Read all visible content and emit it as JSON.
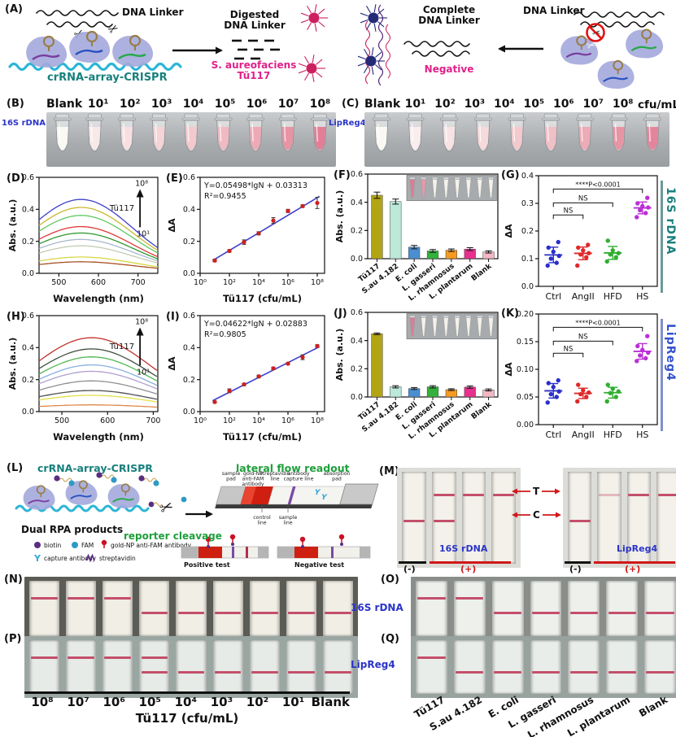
{
  "colors": {
    "magenta": "#e0218a",
    "teal": "#17807d",
    "blue_label": "#2a34c8",
    "green": "#1fa03c",
    "row1": "#187f7d",
    "row2": "#3252cc",
    "strip_line": "#c44f6b"
  },
  "panelA": {
    "tag": "(A)",
    "dna_linker_left": "DNA Linker",
    "crispr": "crRNA-array-CRISPR",
    "digested": "Digested\nDNA Linker",
    "positive": "S. aureofaciens\nTü117",
    "complete": "Complete\nDNA Linker",
    "negative": "Negative",
    "dna_linker_right": "DNA Linker"
  },
  "panelB": {
    "tag": "(B)",
    "side": "16S rDNA",
    "labels": [
      "Blank",
      "10¹",
      "10²",
      "10³",
      "10⁴",
      "10⁵",
      "10⁶",
      "10⁷",
      "10⁸"
    ],
    "tube_colors": [
      "#faf8f2",
      "#f8e9e9",
      "#f7dfe1",
      "#f4d4d7",
      "#f2c9cd",
      "#efbac3",
      "#edaab6",
      "#e794a5",
      "#e27f97"
    ]
  },
  "panelC": {
    "tag": "(C)",
    "side": "LipReg4",
    "unit": "cfu/mL",
    "labels": [
      "Blank",
      "10¹",
      "10²",
      "10³",
      "10⁴",
      "10⁵",
      "10⁶",
      "10⁷",
      "10⁸"
    ],
    "tube_colors": [
      "#faf8f2",
      "#f9eded",
      "#f7e3e4",
      "#f5d9db",
      "#f2cacd",
      "#f0c0c7",
      "#ecabb6",
      "#e795a5",
      "#e3869c"
    ]
  },
  "rowLabels": {
    "row1": "16S rDNA",
    "row2": "LipReg4"
  },
  "chart_data": [
    {
      "id": "D",
      "tag": "(D)",
      "type": "line",
      "subtype": "spectra",
      "xlabel": "Wavelength (nm)",
      "ylabel": "Abs. (a.u.)",
      "xlim": [
        450,
        750
      ],
      "ylim": [
        0,
        0.6
      ],
      "xticks": [
        500,
        600,
        700
      ],
      "yticks": [
        "0.0",
        "0.2",
        "0.4",
        "0.6"
      ],
      "peak_nm": 556,
      "arrow_top": "10⁸",
      "arrow_bottom": "10¹",
      "arrow_label": "Tü117",
      "series": [
        {
          "name": "10⁸",
          "peak": 0.45,
          "color": "#4040cc"
        },
        {
          "name": "10⁷",
          "peak": 0.4,
          "color": "#c8b830"
        },
        {
          "name": "10⁶",
          "peak": 0.35,
          "color": "#60c860"
        },
        {
          "name": "10⁵",
          "peak": 0.28,
          "color": "#e03838"
        },
        {
          "name": "10⁴",
          "peak": 0.24,
          "color": "#309830"
        },
        {
          "name": "10³",
          "peak": 0.2,
          "color": "#a8b8cc"
        },
        {
          "name": "10²",
          "peak": 0.16,
          "color": "#c2ccb2"
        },
        {
          "name": "10¹",
          "peak": 0.09,
          "color": "#d8d84a"
        },
        {
          "name": "Blank",
          "peak": 0.06,
          "color": "#a85020"
        }
      ]
    },
    {
      "id": "E",
      "tag": "(E)",
      "type": "scatter",
      "subtype": "logline",
      "eq": "Y=0.05498*lgN + 0.03313",
      "r2": "R²=0.9455",
      "xlabel": "Tü117 (cfu/mL)",
      "ylabel": "ΔA",
      "ylim": [
        0,
        0.6
      ],
      "yticks": [
        "0.0",
        "0.2",
        "0.4",
        "0.6"
      ],
      "xticks": [
        0,
        2,
        4,
        6,
        8
      ],
      "xtick_labels": [
        "10⁰",
        "10²",
        "10⁴",
        "10⁶",
        "10⁸"
      ],
      "points_lg": [
        1,
        2,
        3,
        4,
        5,
        6,
        7,
        8
      ],
      "points_y": [
        0.08,
        0.14,
        0.195,
        0.25,
        0.33,
        0.39,
        0.42,
        0.44
      ],
      "errs": [
        0.008,
        0.008,
        0.014,
        0.01,
        0.018,
        0.01,
        0.008,
        0.035
      ],
      "fit": {
        "slope": 0.05498,
        "intercept": 0.03313
      },
      "point_color": "#cc2020",
      "line_color": "#4040cc"
    },
    {
      "id": "F",
      "tag": "(F)",
      "type": "bar",
      "ylabel": "Abs. (a.u.)",
      "ylim": [
        0,
        0.6
      ],
      "yticks": [
        "0.0",
        "0.2",
        "0.4",
        "0.6"
      ],
      "categories": [
        "Tü117",
        "S.au 4.182",
        "E. coli",
        "L. gasseri",
        "L. rhamnosus",
        "L. plantarum",
        "Blank"
      ],
      "values": [
        0.45,
        0.405,
        0.082,
        0.055,
        0.06,
        0.068,
        0.048
      ],
      "errors": [
        0.022,
        0.018,
        0.012,
        0.01,
        0.009,
        0.01,
        0.008
      ],
      "colors": [
        "#b3a414",
        "#bce9d8",
        "#4b8fd2",
        "#33b13c",
        "#f59a23",
        "#e8308e",
        "#f3b7c3"
      ],
      "inset_tubes": [
        "#dd7d95",
        "#e49aac",
        "#f3f1ea",
        "#f3f1ea",
        "#f3f1ea",
        "#f3f1ea",
        "#f3f1ea",
        "#f3f1ea"
      ]
    },
    {
      "id": "G",
      "tag": "(G)",
      "type": "scatter",
      "subtype": "dot",
      "ylabel": "ΔA",
      "ylim": [
        0,
        0.4
      ],
      "yticks": [
        "0.0",
        "0.1",
        "0.2",
        "0.3",
        "0.4"
      ],
      "categories": [
        "Ctrl",
        "AngII",
        "HFD",
        "HS"
      ],
      "colors": [
        "#2a2ecb",
        "#e02828",
        "#2fae2f",
        "#bb2fd6"
      ],
      "groups": [
        [
          0.075,
          0.085,
          0.1,
          0.11,
          0.125,
          0.14,
          0.16
        ],
        [
          0.075,
          0.105,
          0.115,
          0.12,
          0.13,
          0.14,
          0.15
        ],
        [
          0.09,
          0.105,
          0.115,
          0.12,
          0.13,
          0.165
        ],
        [
          0.25,
          0.265,
          0.275,
          0.285,
          0.29,
          0.3,
          0.32
        ]
      ],
      "sig": [
        "****P<0.0001",
        "NS",
        "NS"
      ]
    },
    {
      "id": "H",
      "tag": "(H)",
      "type": "line",
      "subtype": "spectra",
      "xlabel": "Wavelength (nm)",
      "ylabel": "Abs. (a.u.)",
      "xlim": [
        450,
        710
      ],
      "ylim": [
        0,
        0.6
      ],
      "xticks": [
        500,
        600,
        700
      ],
      "yticks": [
        "0.0",
        "0.2",
        "0.4",
        "0.6"
      ],
      "peak_nm": 565,
      "arrow_top": "10⁸",
      "arrow_bottom": "10¹",
      "arrow_label": "Tü117",
      "series": [
        {
          "name": "10⁸",
          "peak": 0.45,
          "color": "#c03028"
        },
        {
          "name": "10⁷",
          "peak": 0.38,
          "color": "#405040"
        },
        {
          "name": "10⁶",
          "peak": 0.33,
          "color": "#50b850"
        },
        {
          "name": "10⁵",
          "peak": 0.28,
          "color": "#88b0e0"
        },
        {
          "name": "10⁴",
          "peak": 0.24,
          "color": "#b0a0d0"
        },
        {
          "name": "10³",
          "peak": 0.18,
          "color": "#909090"
        },
        {
          "name": "10²",
          "peak": 0.12,
          "color": "#505050"
        },
        {
          "name": "10¹",
          "peak": 0.09,
          "color": "#e0e048"
        },
        {
          "name": "Blank",
          "peak": 0.03,
          "color": "#e08848"
        }
      ]
    },
    {
      "id": "I",
      "tag": "(I)",
      "type": "scatter",
      "subtype": "logline",
      "eq": "Y=0.04622*lgN + 0.02883",
      "r2": "R²=0.9805",
      "xlabel": "Tü117 (cfu/mL)",
      "ylabel": "ΔA",
      "ylim": [
        0,
        0.6
      ],
      "yticks": [
        "0.0",
        "0.2",
        "0.4",
        "0.6"
      ],
      "xticks": [
        0,
        2,
        4,
        6,
        8
      ],
      "xtick_labels": [
        "10⁰",
        "10²",
        "10⁴",
        "10⁶",
        "10⁸"
      ],
      "points_lg": [
        1,
        2,
        3,
        4,
        5,
        6,
        7,
        8
      ],
      "points_y": [
        0.06,
        0.13,
        0.17,
        0.22,
        0.27,
        0.3,
        0.34,
        0.41
      ],
      "errs": [
        0.006,
        0.012,
        0.008,
        0.008,
        0.008,
        0.006,
        0.015,
        0.008
      ],
      "fit": {
        "slope": 0.04622,
        "intercept": 0.02883
      },
      "point_color": "#cc2020",
      "line_color": "#4040cc"
    },
    {
      "id": "J",
      "tag": "(J)",
      "type": "bar",
      "ylabel": "Abs. (a.u.)",
      "ylim": [
        0,
        0.6
      ],
      "yticks": [
        "0.0",
        "0.2",
        "0.4",
        "0.6"
      ],
      "categories": [
        "Tü117",
        "S.au 4.182",
        "E. coli",
        "L. gasseri",
        "L. rhamnosus",
        "L. plantarum",
        "Blank"
      ],
      "values": [
        0.448,
        0.072,
        0.06,
        0.072,
        0.052,
        0.07,
        0.05
      ],
      "errors": [
        0.006,
        0.008,
        0.007,
        0.008,
        0.006,
        0.008,
        0.007
      ],
      "colors": [
        "#b3a414",
        "#bce9d8",
        "#4b8fd2",
        "#33b13c",
        "#f59a23",
        "#e8308e",
        "#f3b7c3"
      ],
      "inset_tubes": [
        "#dd7d95",
        "#f3f1ea",
        "#f3f1ea",
        "#f3f1ea",
        "#f3f1ea",
        "#f3f1ea",
        "#f3f1ea",
        "#f3f1ea"
      ]
    },
    {
      "id": "K",
      "tag": "(K)",
      "type": "scatter",
      "subtype": "dot",
      "ylabel": "ΔA",
      "ylim": [
        0,
        0.2
      ],
      "yticks": [
        "0.00",
        "0.05",
        "0.10",
        "0.15",
        "0.20"
      ],
      "categories": [
        "Ctrl",
        "AngII",
        "HFD",
        "HS"
      ],
      "colors": [
        "#2a2ecb",
        "#e02828",
        "#2fae2f",
        "#bb2fd6"
      ],
      "groups": [
        [
          0.04,
          0.05,
          0.055,
          0.06,
          0.068,
          0.075,
          0.08
        ],
        [
          0.042,
          0.05,
          0.055,
          0.058,
          0.062,
          0.072
        ],
        [
          0.042,
          0.05,
          0.057,
          0.06,
          0.065,
          0.072
        ],
        [
          0.115,
          0.12,
          0.125,
          0.13,
          0.135,
          0.142,
          0.16
        ]
      ],
      "sig": [
        "****P<0.0001",
        "NS",
        "NS"
      ]
    }
  ],
  "panelL": {
    "tag": "(L)",
    "crispr": "crRNA-array-CRISPR",
    "dual_rpa": "Dual RPA products",
    "cleavage": "reporter cleavage",
    "lfr_title": "lateral flow readout",
    "lfr_top": [
      "sample\npad",
      "gold-NP\nanti-FAM\nantibody",
      "streptavidin\nline",
      "antibody\ncapture line",
      "absorption\npad"
    ],
    "lfr_bottom": [
      "control\nline",
      "sample\nline"
    ],
    "legend": [
      {
        "label": "biotin"
      },
      {
        "label": "FAM"
      },
      {
        "label": "gold-NP anti-FAM antibody"
      },
      {
        "label": "capture antibody"
      },
      {
        "label": "streptavidin"
      }
    ],
    "positive": "Positive test",
    "negative": "Negative test"
  },
  "panelM": {
    "tag": "(M)",
    "t_label": "T",
    "c_label": "C",
    "neg": "(-)",
    "pos": "(+)",
    "group1_label": "16S rDNA",
    "group2_label": "LipReg4",
    "group1_strips": [
      "C",
      "TC",
      "T",
      "T"
    ],
    "group2_strips": [
      "C",
      "T_faint",
      "T",
      "T"
    ]
  },
  "panelN": {
    "tag": "(N)",
    "side": "16S rDNA",
    "strips": [
      "T",
      "T",
      "T",
      "C",
      "C",
      "C",
      "C",
      "C",
      "C"
    ]
  },
  "panelO": {
    "tag": "(O)",
    "strips": [
      "T",
      "T",
      "C",
      "C",
      "C",
      "C",
      "C"
    ]
  },
  "panelP": {
    "tag": "(P)",
    "side": "LipReg4",
    "strips": [
      "T",
      "T",
      "T",
      "TC",
      "C",
      "C",
      "C",
      "C",
      "C"
    ]
  },
  "panelQ": {
    "tag": "(Q)",
    "strips": [
      "T",
      "C",
      "C",
      "C",
      "C",
      "C",
      "C"
    ],
    "labels": [
      "Tü117",
      "S.au 4.182",
      "E. coli",
      "L. gasseri",
      "L. rhamnosus",
      "L. plantarum",
      "Blank"
    ]
  },
  "bottomAxis": {
    "labels": [
      "10⁸",
      "10⁷",
      "10⁶",
      "10⁵",
      "10⁴",
      "10³",
      "10²",
      "10¹",
      "Blank"
    ],
    "xlabel": "Tü117 (cfu/mL)"
  }
}
